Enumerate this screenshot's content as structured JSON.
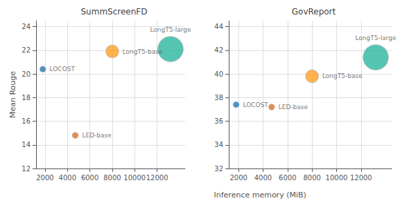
{
  "chart_data": [
    {
      "type": "scatter",
      "title": "SummScreenFD",
      "ylabel": "Mean Rouge",
      "xlabel": "Inference memory (MiB)",
      "labels": [
        "LOCOST",
        "LED-base",
        "LongT5-base",
        "LongT5-large"
      ],
      "x": [
        1800,
        4700,
        8000,
        13200
      ],
      "values": [
        20.4,
        14.8,
        21.9,
        22.1
      ],
      "sizes": [
        40,
        40,
        180,
        700
      ],
      "colors": [
        "#1f77b4",
        "#e07020",
        "#ff9f20",
        "#2ab5a0"
      ],
      "xlim": [
        1200,
        14500
      ],
      "xticks": [
        2000,
        4000,
        6000,
        8000,
        10000,
        12000
      ],
      "ylim": [
        12,
        24.5
      ],
      "yticks": [
        12,
        14,
        16,
        18,
        20,
        22,
        24
      ],
      "grid": true
    },
    {
      "type": "scatter",
      "title": "GovReport",
      "labels": [
        "LOCOST",
        "LED-base",
        "LongT5-base",
        "LongT5-large"
      ],
      "x": [
        1800,
        4700,
        8000,
        13200
      ],
      "values": [
        37.4,
        37.2,
        39.8,
        41.4
      ],
      "sizes": [
        40,
        40,
        180,
        700
      ],
      "colors": [
        "#1f77b4",
        "#e07020",
        "#ff9f20",
        "#2ab5a0"
      ],
      "xlim": [
        1200,
        14500
      ],
      "xticks": [
        2000,
        4000,
        6000,
        8000,
        10000,
        12000
      ],
      "ylim": [
        32,
        44.5
      ],
      "yticks": [
        32,
        34,
        36,
        38,
        40,
        42,
        44
      ],
      "grid": true
    }
  ]
}
